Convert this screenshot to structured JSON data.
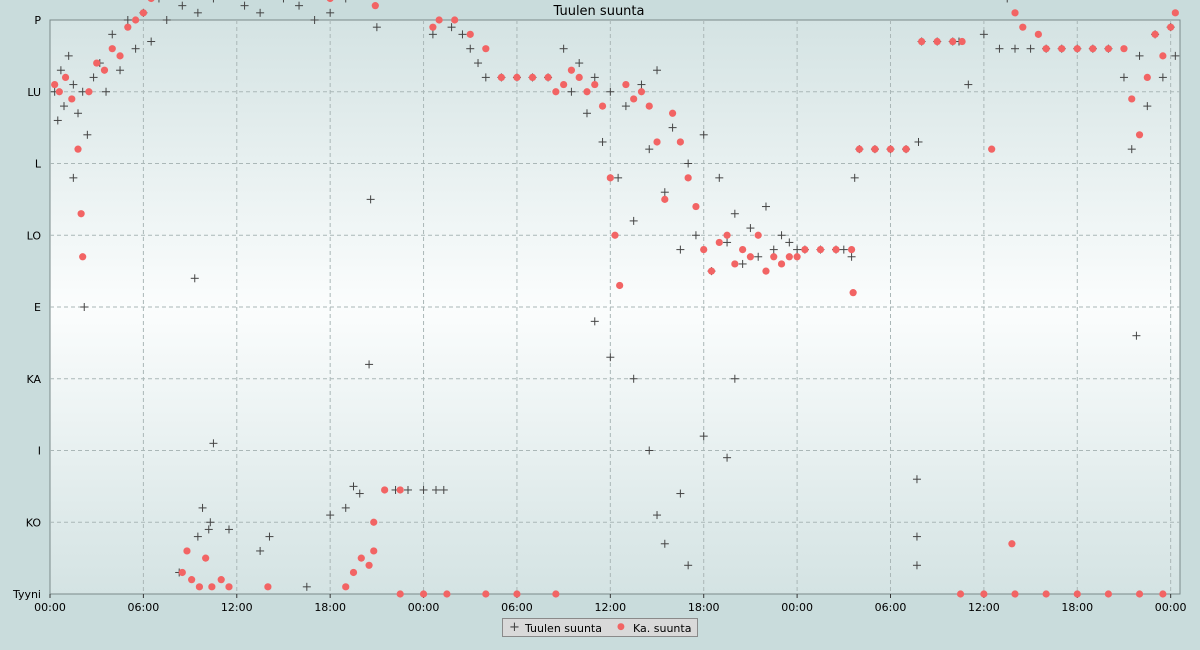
{
  "chart_data": {
    "type": "scatter",
    "title": "Tuulen suunta",
    "y_categories": [
      "Tyyni",
      "KO",
      "I",
      "KA",
      "E",
      "LO",
      "L",
      "LU",
      "P"
    ],
    "x_ticks": [
      "00:00",
      "06:00",
      "12:00",
      "18:00",
      "00:00",
      "06:00",
      "12:00",
      "18:00",
      "00:00",
      "06:00",
      "12:00",
      "18:00",
      "00:00"
    ],
    "x_range_hours": [
      0,
      72.6
    ],
    "grid": true,
    "legend_position": "bottom-center",
    "series": [
      {
        "name": "Tuulen suunta",
        "marker": "plus",
        "color": "#444444",
        "points": [
          [
            0.3,
            7.0
          ],
          [
            0.5,
            6.6
          ],
          [
            0.7,
            7.3
          ],
          [
            0.9,
            6.8
          ],
          [
            1.2,
            7.5
          ],
          [
            1.5,
            7.1
          ],
          [
            1.8,
            6.7
          ],
          [
            2.1,
            7.0
          ],
          [
            2.4,
            6.4
          ],
          [
            2.8,
            7.2
          ],
          [
            3.2,
            7.4
          ],
          [
            3.6,
            7.0
          ],
          [
            4.0,
            7.8
          ],
          [
            4.5,
            7.3
          ],
          [
            5.0,
            8.0
          ],
          [
            5.5,
            7.6
          ],
          [
            6.0,
            8.1
          ],
          [
            6.5,
            7.7
          ],
          [
            7.0,
            8.3
          ],
          [
            7.5,
            8.0
          ],
          [
            8.0,
            8.5
          ],
          [
            8.5,
            8.2
          ],
          [
            9.0,
            8.6
          ],
          [
            9.5,
            8.1
          ],
          [
            10.0,
            8.7
          ],
          [
            10.5,
            8.3
          ],
          [
            11.0,
            8.8
          ],
          [
            11.5,
            8.4
          ],
          [
            12.0,
            8.5
          ],
          [
            12.5,
            8.2
          ],
          [
            13.0,
            8.6
          ],
          [
            13.5,
            8.1
          ],
          [
            14.0,
            8.4
          ],
          [
            14.5,
            8.7
          ],
          [
            15.0,
            8.3
          ],
          [
            15.5,
            8.5
          ],
          [
            16.0,
            8.2
          ],
          [
            16.5,
            8.6
          ],
          [
            17.0,
            8.0
          ],
          [
            17.5,
            8.4
          ],
          [
            18.0,
            8.1
          ],
          [
            18.5,
            8.5
          ],
          [
            19.0,
            8.3
          ],
          [
            19.5,
            8.8
          ],
          [
            20.0,
            8.4
          ],
          [
            20.5,
            8.6
          ],
          [
            21.0,
            7.9
          ],
          [
            1.5,
            5.8
          ],
          [
            2.2,
            4.0
          ],
          [
            9.3,
            4.4
          ],
          [
            10.5,
            2.1
          ],
          [
            10.3,
            1.0
          ],
          [
            9.5,
            0.8
          ],
          [
            8.3,
            0.3
          ],
          [
            9.8,
            1.2
          ],
          [
            10.2,
            0.9
          ],
          [
            11.5,
            0.9
          ],
          [
            13.5,
            0.6
          ],
          [
            14.1,
            0.8
          ],
          [
            16.5,
            0.1
          ],
          [
            18.0,
            1.1
          ],
          [
            19.0,
            1.2
          ],
          [
            19.5,
            1.5
          ],
          [
            19.9,
            1.4
          ],
          [
            20.5,
            3.2
          ],
          [
            20.6,
            5.5
          ],
          [
            22.2,
            1.45
          ],
          [
            23.0,
            1.45
          ],
          [
            24.0,
            1.45
          ],
          [
            24.8,
            1.45
          ],
          [
            25.3,
            1.45
          ],
          [
            24.6,
            7.8
          ],
          [
            25.8,
            7.9
          ],
          [
            26.5,
            7.8
          ],
          [
            27.0,
            7.6
          ],
          [
            27.5,
            7.4
          ],
          [
            28.0,
            7.2
          ],
          [
            29.0,
            7.2
          ],
          [
            30.0,
            7.2
          ],
          [
            31.0,
            7.2
          ],
          [
            32.0,
            7.2
          ],
          [
            33.0,
            7.6
          ],
          [
            33.5,
            7.0
          ],
          [
            34.0,
            7.4
          ],
          [
            34.5,
            6.7
          ],
          [
            35.0,
            7.2
          ],
          [
            35.5,
            6.3
          ],
          [
            36.0,
            7.0
          ],
          [
            36.5,
            5.8
          ],
          [
            37.0,
            6.8
          ],
          [
            37.5,
            5.2
          ],
          [
            38.0,
            7.1
          ],
          [
            38.5,
            6.2
          ],
          [
            39.0,
            7.3
          ],
          [
            39.5,
            5.6
          ],
          [
            40.0,
            6.5
          ],
          [
            40.5,
            4.8
          ],
          [
            41.0,
            6.0
          ],
          [
            41.5,
            5.0
          ],
          [
            42.0,
            6.4
          ],
          [
            42.5,
            4.5
          ],
          [
            43.0,
            5.8
          ],
          [
            43.5,
            4.9
          ],
          [
            44.0,
            5.3
          ],
          [
            44.5,
            4.6
          ],
          [
            45.0,
            5.1
          ],
          [
            45.5,
            4.7
          ],
          [
            46.0,
            5.4
          ],
          [
            46.5,
            4.8
          ],
          [
            47.0,
            5.0
          ],
          [
            47.5,
            4.9
          ],
          [
            48.0,
            4.8
          ],
          [
            35.0,
            3.8
          ],
          [
            36.0,
            3.3
          ],
          [
            37.5,
            3.0
          ],
          [
            38.5,
            2.0
          ],
          [
            39.0,
            1.1
          ],
          [
            39.5,
            0.7
          ],
          [
            40.5,
            1.4
          ],
          [
            41.0,
            0.4
          ],
          [
            42.0,
            2.2
          ],
          [
            43.5,
            1.9
          ],
          [
            44.0,
            3.0
          ],
          [
            48.5,
            4.8
          ],
          [
            49.5,
            4.8
          ],
          [
            50.5,
            4.8
          ],
          [
            51.0,
            4.8
          ],
          [
            51.5,
            4.7
          ],
          [
            51.7,
            5.8
          ],
          [
            52.0,
            6.2
          ],
          [
            53.0,
            6.2
          ],
          [
            54.0,
            6.2
          ],
          [
            55.0,
            6.2
          ],
          [
            55.8,
            6.3
          ],
          [
            55.7,
            1.6
          ],
          [
            55.7,
            0.8
          ],
          [
            55.7,
            0.4
          ],
          [
            56.0,
            7.7
          ],
          [
            57.0,
            7.7
          ],
          [
            58.0,
            7.7
          ],
          [
            58.4,
            7.7
          ],
          [
            59.0,
            7.1
          ],
          [
            60.0,
            7.8
          ],
          [
            61.0,
            7.6
          ],
          [
            61.5,
            8.3
          ],
          [
            62.0,
            7.6
          ],
          [
            63.0,
            7.6
          ],
          [
            64.0,
            7.6
          ],
          [
            65.0,
            7.6
          ],
          [
            66.0,
            7.6
          ],
          [
            67.0,
            7.6
          ],
          [
            68.0,
            7.6
          ],
          [
            69.0,
            7.2
          ],
          [
            69.5,
            6.2
          ],
          [
            70.0,
            7.5
          ],
          [
            70.5,
            6.8
          ],
          [
            71.0,
            7.8
          ],
          [
            71.5,
            7.2
          ],
          [
            72.0,
            7.9
          ],
          [
            72.3,
            7.5
          ],
          [
            69.8,
            3.6
          ]
        ]
      },
      {
        "name": "Ka. suunta",
        "marker": "dot",
        "color": "#f26464",
        "points": [
          [
            0.3,
            7.1
          ],
          [
            0.6,
            7.0
          ],
          [
            1.0,
            7.2
          ],
          [
            1.4,
            6.9
          ],
          [
            1.8,
            6.2
          ],
          [
            2.0,
            5.3
          ],
          [
            2.1,
            4.7
          ],
          [
            2.5,
            7.0
          ],
          [
            3.0,
            7.4
          ],
          [
            3.5,
            7.3
          ],
          [
            4.0,
            7.6
          ],
          [
            4.5,
            7.5
          ],
          [
            5.0,
            7.9
          ],
          [
            5.5,
            8.0
          ],
          [
            6.0,
            8.1
          ],
          [
            6.5,
            8.3
          ],
          [
            7.0,
            8.4
          ],
          [
            7.5,
            8.6
          ],
          [
            8.0,
            8.7
          ],
          [
            8.5,
            8.8
          ],
          [
            9.0,
            8.9
          ],
          [
            9.5,
            9.0
          ],
          [
            10.0,
            8.9
          ],
          [
            10.5,
            8.8
          ],
          [
            11.0,
            8.9
          ],
          [
            11.5,
            8.8
          ],
          [
            12.0,
            8.7
          ],
          [
            12.5,
            8.5
          ],
          [
            13.0,
            8.4
          ],
          [
            13.5,
            8.5
          ],
          [
            14.0,
            8.6
          ],
          [
            14.5,
            8.7
          ],
          [
            15.0,
            8.8
          ],
          [
            15.5,
            8.6
          ],
          [
            16.0,
            8.5
          ],
          [
            16.5,
            8.4
          ],
          [
            17.0,
            8.5
          ],
          [
            17.5,
            8.4
          ],
          [
            18.0,
            8.3
          ],
          [
            18.5,
            8.5
          ],
          [
            19.0,
            8.6
          ],
          [
            19.5,
            8.8
          ],
          [
            20.0,
            8.9
          ],
          [
            20.5,
            8.4
          ],
          [
            20.9,
            8.2
          ],
          [
            8.5,
            0.3
          ],
          [
            8.8,
            0.6
          ],
          [
            9.1,
            0.2
          ],
          [
            9.6,
            0.1
          ],
          [
            10.0,
            0.5
          ],
          [
            10.4,
            0.1
          ],
          [
            11.0,
            0.2
          ],
          [
            11.5,
            0.1
          ],
          [
            14.0,
            0.1
          ],
          [
            19.0,
            0.1
          ],
          [
            19.5,
            0.3
          ],
          [
            20.0,
            0.5
          ],
          [
            20.5,
            0.4
          ],
          [
            20.8,
            0.6
          ],
          [
            20.8,
            1.0
          ],
          [
            21.5,
            1.45
          ],
          [
            22.5,
            1.45
          ],
          [
            22.5,
            0.0
          ],
          [
            24.0,
            0.0
          ],
          [
            25.5,
            0.0
          ],
          [
            28.0,
            0.0
          ],
          [
            30.0,
            0.0
          ],
          [
            32.5,
            0.0
          ],
          [
            24.6,
            7.9
          ],
          [
            25.0,
            8.0
          ],
          [
            26.0,
            8.0
          ],
          [
            27.0,
            7.8
          ],
          [
            28.0,
            7.6
          ],
          [
            29.0,
            7.2
          ],
          [
            30.0,
            7.2
          ],
          [
            31.0,
            7.2
          ],
          [
            32.0,
            7.2
          ],
          [
            32.5,
            7.0
          ],
          [
            33.0,
            7.1
          ],
          [
            33.5,
            7.3
          ],
          [
            34.0,
            7.2
          ],
          [
            34.5,
            7.0
          ],
          [
            35.0,
            7.1
          ],
          [
            35.5,
            6.8
          ],
          [
            36.0,
            5.8
          ],
          [
            36.3,
            5.0
          ],
          [
            36.6,
            4.3
          ],
          [
            37.0,
            7.1
          ],
          [
            37.5,
            6.9
          ],
          [
            38.0,
            7.0
          ],
          [
            38.5,
            6.8
          ],
          [
            39.0,
            6.3
          ],
          [
            39.5,
            5.5
          ],
          [
            40.0,
            6.7
          ],
          [
            40.5,
            6.3
          ],
          [
            41.0,
            5.8
          ],
          [
            41.5,
            5.4
          ],
          [
            42.0,
            4.8
          ],
          [
            42.5,
            4.5
          ],
          [
            43.0,
            4.9
          ],
          [
            43.5,
            5.0
          ],
          [
            44.0,
            4.6
          ],
          [
            44.5,
            4.8
          ],
          [
            45.0,
            4.7
          ],
          [
            45.5,
            5.0
          ],
          [
            46.0,
            4.5
          ],
          [
            46.5,
            4.7
          ],
          [
            47.0,
            4.6
          ],
          [
            47.5,
            4.7
          ],
          [
            48.0,
            4.7
          ],
          [
            48.5,
            4.8
          ],
          [
            49.5,
            4.8
          ],
          [
            50.5,
            4.8
          ],
          [
            51.5,
            4.8
          ],
          [
            51.6,
            4.2
          ],
          [
            52.0,
            6.2
          ],
          [
            53.0,
            6.2
          ],
          [
            54.0,
            6.2
          ],
          [
            55.0,
            6.2
          ],
          [
            56.0,
            7.7
          ],
          [
            57.0,
            7.7
          ],
          [
            58.0,
            7.7
          ],
          [
            58.6,
            7.7
          ],
          [
            58.5,
            0.0
          ],
          [
            60.0,
            0.0
          ],
          [
            62.0,
            0.0
          ],
          [
            64.0,
            0.0
          ],
          [
            66.0,
            0.0
          ],
          [
            68.0,
            0.0
          ],
          [
            70.0,
            0.0
          ],
          [
            71.5,
            0.0
          ],
          [
            60.5,
            6.2
          ],
          [
            61.8,
            0.7
          ],
          [
            62.0,
            8.1
          ],
          [
            62.5,
            7.9
          ],
          [
            63.5,
            7.8
          ],
          [
            64.0,
            7.6
          ],
          [
            65.0,
            7.6
          ],
          [
            66.0,
            7.6
          ],
          [
            67.0,
            7.6
          ],
          [
            68.0,
            7.6
          ],
          [
            69.0,
            7.6
          ],
          [
            69.5,
            6.9
          ],
          [
            70.0,
            6.4
          ],
          [
            70.5,
            7.2
          ],
          [
            71.0,
            7.8
          ],
          [
            71.5,
            7.5
          ],
          [
            72.0,
            7.9
          ],
          [
            72.3,
            8.1
          ]
        ]
      }
    ]
  }
}
